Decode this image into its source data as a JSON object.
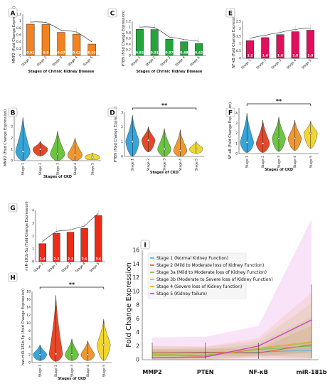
{
  "chart_data": [
    {
      "id": "A",
      "type": "bar",
      "color": "#f58220",
      "categories": [
        "Stage 1",
        "Stage 2",
        "Stage 3",
        "Stage 4",
        "Stage 5"
      ],
      "values": [
        0.91,
        0.9,
        0.67,
        0.62,
        0.33
      ],
      "value_labels": [
        "0.91",
        "0.9",
        "0.67",
        "0.62",
        "0.33"
      ],
      "ylabel": "MMP2 (Fold Change Expression)",
      "xlabel": "Stages of Chrinic Kidney Disease",
      "ylim": [
        0,
        1.2
      ],
      "yticks": [
        "0",
        "0.2",
        "0.4",
        "0.6",
        "0.8",
        "1",
        "1.2"
      ]
    },
    {
      "id": "C",
      "type": "bar",
      "color": "#22a639",
      "categories": [
        "Stage 1",
        "Stage 2",
        "Stage 3",
        "Stage 4",
        "Stage 5"
      ],
      "values": [
        0.92,
        0.91,
        0.57,
        0.48,
        0.42
      ],
      "value_labels": [
        "0.92",
        "0.91",
        "0.57",
        "0.48",
        "0.42"
      ],
      "ylabel": "PTEN (Fold Change Expression)",
      "xlabel": "Stages of Chrinic Kidney Disease",
      "ylim": [
        0,
        1.2
      ],
      "yticks": [
        "0",
        "0.2",
        "0.4",
        "0.6",
        "0.8",
        "1",
        "1.2"
      ]
    },
    {
      "id": "E",
      "type": "bar",
      "color": "#e0105e",
      "categories": [
        "Stage 1",
        "Stage 2",
        "Stage 3",
        "Stage 4",
        "Stage 5"
      ],
      "values": [
        1.2,
        1.4,
        1.6,
        1.8,
        1.9
      ],
      "value_labels": [
        "1.2",
        "1.4",
        "1.6",
        "1.8",
        "1.9"
      ],
      "ylabel": "NF-kB (Fold Change Expression)",
      "xlabel": "",
      "ylim": [
        0,
        2.5
      ],
      "yticks": [
        "0",
        "0.5",
        "1",
        "1.5",
        "2",
        "2.5"
      ]
    },
    {
      "id": "G",
      "type": "bar",
      "color": "#ee2b14",
      "categories": [
        "Stage 1",
        "Stage 2",
        "Stage 3",
        "Stage 4",
        "Stage 5"
      ],
      "values": [
        1.4,
        2.2,
        2.3,
        2.6,
        3.6
      ],
      "value_labels": [
        "1.4",
        "2.2",
        "2.3",
        "2.6",
        "3.6"
      ],
      "ylabel": "miR-181b-5p (Fold Change Expression)",
      "xlabel": "",
      "ylim": [
        0,
        4
      ],
      "yticks": [
        "0",
        "1",
        "2",
        "3",
        "4"
      ]
    },
    {
      "id": "B",
      "type": "violin",
      "categories": [
        "Stage 1",
        "Stage 2",
        "Stage 3",
        "Stage 4",
        "Stage 5"
      ],
      "colors": [
        "#1f9bd6",
        "#e63312",
        "#5cbf2a",
        "#f08c1a",
        "#f0d21a"
      ],
      "medians": [
        0.8,
        1.0,
        0.6,
        0.5,
        0.3
      ],
      "spreads": [
        [
          0.0,
          3.8
        ],
        [
          0.4,
          1.7
        ],
        [
          0.0,
          2.6
        ],
        [
          0.0,
          2.0
        ],
        [
          0.1,
          0.7
        ]
      ],
      "ylabel": "MMP2 (Fold Change Expression)",
      "xlabel": "Stages of CKD",
      "ylim": [
        0,
        4
      ],
      "yticks": [
        "0",
        "1",
        "2",
        "3",
        "4"
      ],
      "sig": ""
    },
    {
      "id": "D",
      "type": "violin",
      "categories": [
        "Stage 1",
        "Stage 2",
        "Stage 3",
        "Stage 4",
        "Stage 5"
      ],
      "colors": [
        "#1f9bd6",
        "#e63312",
        "#5cbf2a",
        "#f08c1a",
        "#f0d21a"
      ],
      "medians": [
        1.0,
        1.1,
        0.5,
        0.4,
        0.5
      ],
      "spreads": [
        [
          0.0,
          2.8
        ],
        [
          0.3,
          2.0
        ],
        [
          0.0,
          1.9
        ],
        [
          0.0,
          1.8
        ],
        [
          0.2,
          1.0
        ]
      ],
      "ylabel": "PTEN (Fold Change Expression)",
      "xlabel": "Stages of CKD",
      "ylim": [
        0,
        3
      ],
      "yticks": [
        "0",
        "1",
        "2",
        "3"
      ],
      "sig": "**"
    },
    {
      "id": "F",
      "type": "violin",
      "categories": [
        "Stage 1",
        "Stage 2",
        "Stage 3",
        "Stage 4",
        "Stage 5"
      ],
      "colors": [
        "#1f9bd6",
        "#e63312",
        "#5cbf2a",
        "#f08c1a",
        "#f0d21a"
      ],
      "medians": [
        1.1,
        1.0,
        1.5,
        1.5,
        2.0
      ],
      "spreads": [
        [
          0.1,
          4.0
        ],
        [
          0.1,
          3.3
        ],
        [
          0.2,
          3.6
        ],
        [
          0.3,
          3.3
        ],
        [
          0.5,
          3.2
        ]
      ],
      "ylabel": "NF-κB (Fold Change Expression)",
      "xlabel": "Stages of CKD",
      "ylim": [
        0,
        4.5
      ],
      "yticks": [
        "0",
        "1",
        "2",
        "3",
        "4"
      ],
      "sig": "**"
    },
    {
      "id": "H",
      "type": "violin",
      "categories": [
        "Stage 1",
        "Stage 2",
        "Stage 3",
        "Stage 4",
        "Stage 5"
      ],
      "colors": [
        "#1f9bd6",
        "#e63312",
        "#5cbf2a",
        "#f08c1a",
        "#f0d21a"
      ],
      "medians": [
        2.0,
        2.2,
        2.0,
        2.0,
        4.5
      ],
      "spreads": [
        [
          0.5,
          4.5
        ],
        [
          0.3,
          17.0
        ],
        [
          0.5,
          6.0
        ],
        [
          0.5,
          5.5
        ],
        [
          0.5,
          11.0
        ]
      ],
      "ylabel": "has-miR-181b-5p (Fold Change Expression)",
      "xlabel": "Stages of CKD",
      "ylim": [
        0,
        18
      ],
      "yticks": [
        "0",
        "2",
        "4",
        "6",
        "8",
        "10",
        "12",
        "14",
        "16",
        "18"
      ],
      "sig": "**"
    },
    {
      "id": "I",
      "type": "line",
      "categories": [
        "MMP2",
        "PTEN",
        "NF-κB",
        "miR-181b"
      ],
      "ylabel": "Fold Change Expression",
      "ylim": [
        0,
        16
      ],
      "yticks": [
        "0",
        "2",
        "4",
        "6",
        "8",
        "10",
        "12",
        "14",
        "16"
      ],
      "legend_position": "top-left",
      "series": [
        {
          "name": "Stage 1 (Normal Kidney Function)",
          "color": "#3cb4e6",
          "values": [
            1.0,
            1.0,
            1.1,
            1.4
          ]
        },
        {
          "name": "Stage 2 (Mild to Moderate loss of Kidney Function)",
          "color": "#e6502a",
          "values": [
            1.0,
            1.1,
            1.0,
            2.2
          ]
        },
        {
          "name": "Stage 3a (Mild to Moderate loss of Kidney Function)",
          "color": "#6dbf3a",
          "values": [
            0.7,
            0.6,
            1.5,
            2.0
          ]
        },
        {
          "name": "Stage 3b (Moderate to Severe loss of Kidney Function)",
          "color": "#a0c83c",
          "values": [
            0.8,
            0.7,
            1.6,
            2.5
          ]
        },
        {
          "name": "Stage 4 (Severe loss of Kidney function)",
          "color": "#f0a030",
          "values": [
            0.6,
            0.5,
            1.7,
            2.6
          ]
        },
        {
          "name": "Stage 5 (Kidney failure)",
          "color": "#d23cd2",
          "values": [
            0.3,
            0.4,
            2.0,
            5.8
          ]
        }
      ]
    }
  ]
}
